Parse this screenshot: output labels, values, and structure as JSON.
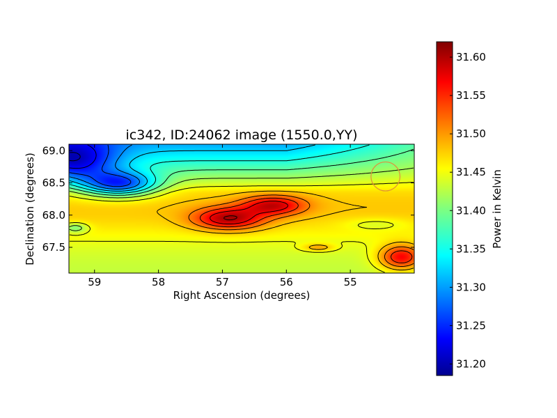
{
  "chart_data": {
    "type": "heatmap",
    "title": "ic342, ID:24062 image (1550.0,YY)",
    "xlabel": "Right Ascension (degrees)",
    "ylabel": "Declination (degrees)",
    "xlim": [
      59.4,
      54.0
    ],
    "ylim": [
      67.1,
      69.1
    ],
    "x_ticks": [
      59,
      58,
      57,
      56,
      55
    ],
    "x_tick_labels": [
      "59",
      "58",
      "57",
      "56",
      "55"
    ],
    "y_ticks": [
      67.5,
      68.0,
      68.5,
      69.0
    ],
    "y_tick_labels": [
      "67.5",
      "68.0",
      "68.5",
      "69.0"
    ],
    "colorbar": {
      "label": "Power in Kelvin",
      "range": [
        31.185,
        31.62
      ],
      "ticks": [
        31.2,
        31.25,
        31.3,
        31.35,
        31.4,
        31.45,
        31.5,
        31.55,
        31.6
      ],
      "tick_labels": [
        "31.20",
        "31.25",
        "31.30",
        "31.35",
        "31.40",
        "31.45",
        "31.50",
        "31.55",
        "31.60"
      ],
      "colormap": "jet"
    },
    "contours": true,
    "beam_circle": {
      "ra": 54.45,
      "dec": 68.6,
      "radius_deg": 0.36,
      "color": "#e08c3c"
    },
    "field_features": [
      {
        "ra": 56.9,
        "dec": 67.95,
        "value": 31.615,
        "spread_ra": 0.55,
        "spread_dec": 0.17
      },
      {
        "ra": 56.2,
        "dec": 68.15,
        "value": 31.6,
        "spread_ra": 0.5,
        "spread_dec": 0.15
      },
      {
        "ra": 59.35,
        "dec": 68.9,
        "value": 31.19,
        "spread_ra": 0.7,
        "spread_dec": 0.35
      },
      {
        "ra": 58.6,
        "dec": 68.5,
        "value": 31.25,
        "spread_ra": 0.6,
        "spread_dec": 0.2
      },
      {
        "ra": 59.3,
        "dec": 67.8,
        "value": 31.4,
        "spread_ra": 0.2,
        "spread_dec": 0.08
      },
      {
        "ra": 54.6,
        "dec": 67.85,
        "value": 31.44,
        "spread_ra": 0.5,
        "spread_dec": 0.1
      },
      {
        "ra": 55.5,
        "dec": 67.5,
        "value": 31.5,
        "spread_ra": 0.25,
        "spread_dec": 0.06
      },
      {
        "ra": 54.2,
        "dec": 67.35,
        "value": 31.58,
        "spread_ra": 0.35,
        "spread_dec": 0.2
      }
    ]
  }
}
